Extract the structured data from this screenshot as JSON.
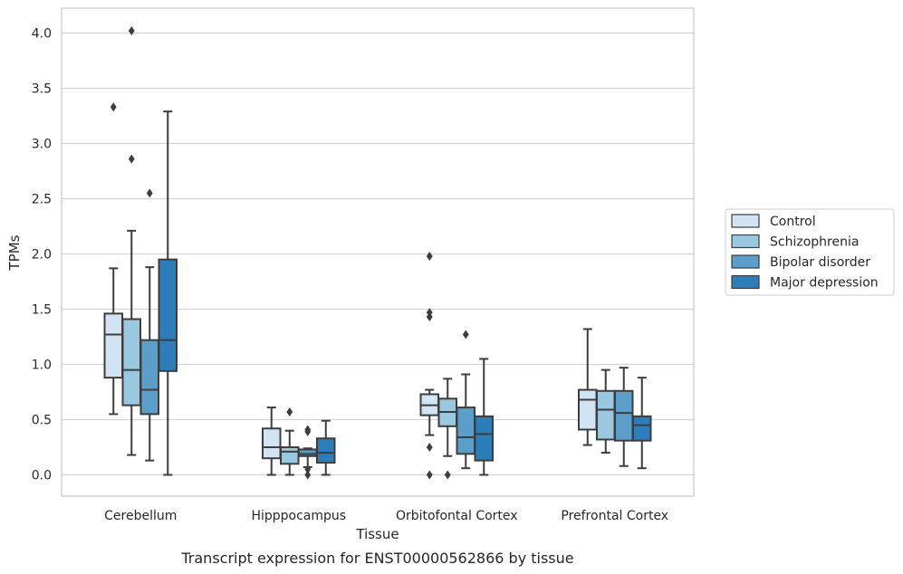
{
  "chart_data": {
    "type": "box",
    "ylabel": "TPMs",
    "xlabel": "Tissue",
    "caption": "Transcript expression for ENST00000562866 by tissue",
    "ylim": [
      -0.2,
      4.22
    ],
    "yticks": [
      0.0,
      0.5,
      1.0,
      1.5,
      2.0,
      2.5,
      3.0,
      3.5,
      4.0
    ],
    "ytick_labels": [
      "0.0",
      "0.5",
      "1.0",
      "1.5",
      "2.0",
      "2.5",
      "3.0",
      "3.5",
      "4.0"
    ],
    "grid": "horizontal",
    "legend_position": "right",
    "categories": [
      "Cerebellum",
      "Hipppocampus",
      "Orbitofontal Cortex",
      "Prefrontal Cortex"
    ],
    "series": [
      {
        "name": "Control",
        "color": "#d2e3f3",
        "boxes": [
          {
            "whislo": 0.55,
            "q1": 0.88,
            "med": 1.27,
            "q3": 1.46,
            "whishi": 1.87,
            "fliers": [
              3.33
            ]
          },
          {
            "whislo": 0.0,
            "q1": 0.15,
            "med": 0.25,
            "q3": 0.42,
            "whishi": 0.61,
            "fliers": []
          },
          {
            "whislo": 0.36,
            "q1": 0.54,
            "med": 0.63,
            "q3": 0.73,
            "whishi": 0.77,
            "fliers": [
              1.98,
              1.47,
              1.43,
              0.25,
              0.0
            ]
          },
          {
            "whislo": 0.27,
            "q1": 0.41,
            "med": 0.68,
            "q3": 0.77,
            "whishi": 1.32,
            "fliers": []
          }
        ]
      },
      {
        "name": "Schizophrenia",
        "color": "#9ac8e0",
        "boxes": [
          {
            "whislo": 0.18,
            "q1": 0.63,
            "med": 0.95,
            "q3": 1.41,
            "whishi": 2.21,
            "fliers": [
              4.02,
              2.86
            ]
          },
          {
            "whislo": 0.0,
            "q1": 0.1,
            "med": 0.21,
            "q3": 0.25,
            "whishi": 0.4,
            "fliers": [
              0.57
            ]
          },
          {
            "whislo": 0.17,
            "q1": 0.44,
            "med": 0.57,
            "q3": 0.69,
            "whishi": 0.87,
            "fliers": [
              0.0
            ]
          },
          {
            "whislo": 0.2,
            "q1": 0.32,
            "med": 0.59,
            "q3": 0.76,
            "whishi": 0.95,
            "fliers": []
          }
        ]
      },
      {
        "name": "Bipolar disorder",
        "color": "#5b9ec9",
        "boxes": [
          {
            "whislo": 0.13,
            "q1": 0.55,
            "med": 0.77,
            "q3": 1.22,
            "whishi": 1.88,
            "fliers": [
              2.55
            ]
          },
          {
            "whislo": 0.07,
            "q1": 0.17,
            "med": 0.19,
            "q3": 0.23,
            "whishi": 0.24,
            "fliers": [
              0.41,
              0.39,
              0.05,
              0.0
            ]
          },
          {
            "whislo": 0.06,
            "q1": 0.19,
            "med": 0.34,
            "q3": 0.61,
            "whishi": 0.91,
            "fliers": [
              1.27
            ]
          },
          {
            "whislo": 0.08,
            "q1": 0.31,
            "med": 0.56,
            "q3": 0.76,
            "whishi": 0.97,
            "fliers": []
          }
        ]
      },
      {
        "name": "Major depression",
        "color": "#2d7dbb",
        "boxes": [
          {
            "whislo": 0.0,
            "q1": 0.94,
            "med": 1.22,
            "q3": 1.95,
            "whishi": 3.29,
            "fliers": []
          },
          {
            "whislo": 0.0,
            "q1": 0.11,
            "med": 0.2,
            "q3": 0.33,
            "whishi": 0.49,
            "fliers": []
          },
          {
            "whislo": 0.0,
            "q1": 0.13,
            "med": 0.37,
            "q3": 0.53,
            "whishi": 1.05,
            "fliers": []
          },
          {
            "whislo": 0.06,
            "q1": 0.31,
            "med": 0.45,
            "q3": 0.53,
            "whishi": 0.88,
            "fliers": []
          }
        ]
      }
    ]
  }
}
